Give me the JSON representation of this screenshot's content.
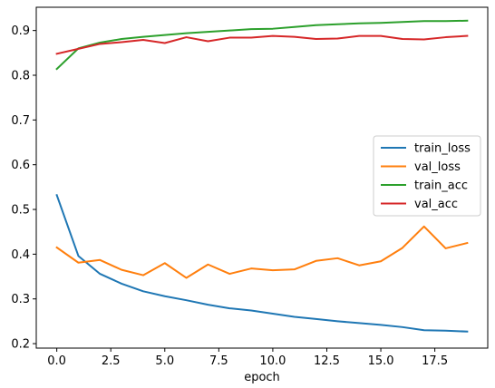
{
  "chart_data": {
    "type": "line",
    "title": "",
    "xlabel": "epoch",
    "ylabel": "",
    "xlim": [
      -0.95,
      19.95
    ],
    "ylim": [
      0.19,
      0.952
    ],
    "xticks": [
      0.0,
      2.5,
      5.0,
      7.5,
      10.0,
      12.5,
      15.0,
      17.5
    ],
    "xtick_labels": [
      "0.0",
      "2.5",
      "5.0",
      "7.5",
      "10.0",
      "12.5",
      "15.0",
      "17.5"
    ],
    "yticks": [
      0.2,
      0.3,
      0.4,
      0.5,
      0.6,
      0.7,
      0.8,
      0.9
    ],
    "ytick_labels": [
      "0.2",
      "0.3",
      "0.4",
      "0.5",
      "0.6",
      "0.7",
      "0.8",
      "0.9"
    ],
    "grid": false,
    "legend_position": "center-right",
    "x": [
      0,
      1,
      2,
      3,
      4,
      5,
      6,
      7,
      8,
      9,
      10,
      11,
      12,
      13,
      14,
      15,
      16,
      17,
      18,
      19
    ],
    "series": [
      {
        "name": "train_loss",
        "color": "#1f77b4",
        "values": [
          0.532,
          0.396,
          0.356,
          0.334,
          0.317,
          0.306,
          0.297,
          0.287,
          0.279,
          0.274,
          0.267,
          0.26,
          0.255,
          0.25,
          0.246,
          0.242,
          0.237,
          0.23,
          0.229,
          0.227
        ]
      },
      {
        "name": "val_loss",
        "color": "#ff7f0e",
        "values": [
          0.415,
          0.381,
          0.387,
          0.365,
          0.353,
          0.38,
          0.347,
          0.377,
          0.356,
          0.368,
          0.364,
          0.366,
          0.385,
          0.391,
          0.375,
          0.384,
          0.414,
          0.462,
          0.413,
          0.425
        ]
      },
      {
        "name": "train_acc",
        "color": "#2ca02c",
        "values": [
          0.814,
          0.86,
          0.873,
          0.881,
          0.886,
          0.89,
          0.894,
          0.897,
          0.9,
          0.903,
          0.904,
          0.908,
          0.912,
          0.914,
          0.916,
          0.917,
          0.919,
          0.921,
          0.921,
          0.922
        ]
      },
      {
        "name": "val_acc",
        "color": "#d62728",
        "values": [
          0.848,
          0.859,
          0.87,
          0.874,
          0.879,
          0.872,
          0.885,
          0.876,
          0.884,
          0.884,
          0.888,
          0.886,
          0.881,
          0.882,
          0.888,
          0.888,
          0.881,
          0.88,
          0.885,
          0.888
        ]
      }
    ]
  }
}
